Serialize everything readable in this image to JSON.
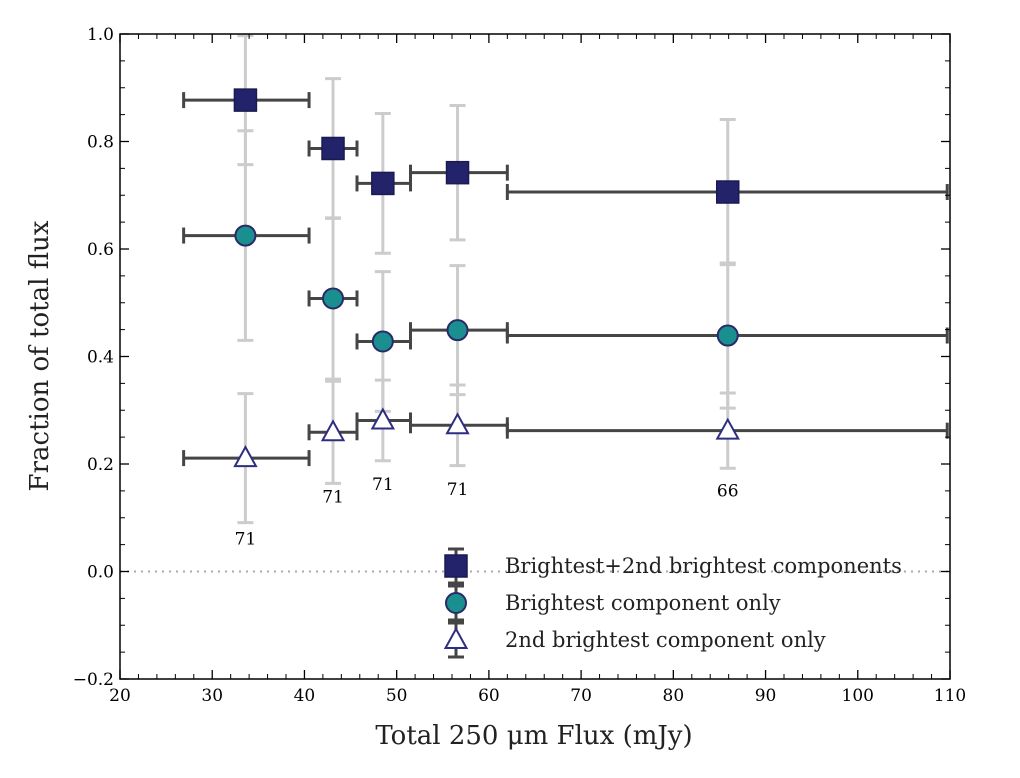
{
  "chart_data": {
    "type": "scatter",
    "xlabel": "Total 250 μm Flux (mJy)",
    "ylabel": "Fraction of total flux",
    "xlim": [
      20,
      110
    ],
    "ylim": [
      -0.2,
      1.0
    ],
    "xticks": [
      "20",
      "30",
      "40",
      "50",
      "60",
      "70",
      "80",
      "90",
      "100",
      "110"
    ],
    "yticks": [
      "−0.2",
      "0.0",
      "0.2",
      "0.4",
      "0.6",
      "0.8",
      "1.0"
    ],
    "xtick_values": [
      20,
      30,
      40,
      50,
      60,
      70,
      80,
      90,
      100,
      110
    ],
    "ytick_values": [
      -0.2,
      0.0,
      0.2,
      0.4,
      0.6,
      0.8,
      1.0
    ],
    "reference_line_y": 0.0,
    "legend_position": "lower-right",
    "bins": [
      {
        "x": 33.6,
        "xlo": 26.9,
        "xhi": 40.5
      },
      {
        "x": 43.1,
        "xlo": 40.5,
        "xhi": 45.7
      },
      {
        "x": 48.5,
        "xlo": 45.7,
        "xhi": 51.5
      },
      {
        "x": 56.6,
        "xlo": 51.5,
        "xhi": 62.0
      },
      {
        "x": 85.9,
        "xlo": 62.0,
        "xhi": 109.7
      }
    ],
    "series": [
      {
        "name": "Brightest+2nd brightest components",
        "marker": "square",
        "color": "#23236b",
        "edge": "#1a1a50",
        "y": [
          0.877,
          0.787,
          0.722,
          0.742,
          0.706
        ],
        "yerr": [
          0.12,
          0.13,
          0.13,
          0.125,
          0.135
        ]
      },
      {
        "name": "Brightest component only",
        "marker": "circle",
        "color": "#1a8f8f",
        "edge": "#2a2a66",
        "y": [
          0.625,
          0.508,
          0.428,
          0.449,
          0.439
        ],
        "yerr": [
          0.195,
          0.15,
          0.13,
          0.12,
          0.135
        ]
      },
      {
        "name": "2nd brightest component only",
        "marker": "triangle",
        "color": "#ffffff",
        "edge": "#2e2e80",
        "y": [
          0.211,
          0.259,
          0.281,
          0.272,
          0.262
        ],
        "yerr": [
          0.12,
          0.095,
          0.075,
          0.075,
          0.07
        ]
      }
    ],
    "counts": [
      {
        "text": "71",
        "x": 33.6,
        "y": 0.05
      },
      {
        "text": "71",
        "x": 43.1,
        "y": 0.128
      },
      {
        "text": "71",
        "x": 48.5,
        "y": 0.152
      },
      {
        "text": "71",
        "x": 56.6,
        "y": 0.142
      },
      {
        "text": "66",
        "x": 85.9,
        "y": 0.14
      }
    ],
    "colors": {
      "errorbar_x": "#454545",
      "errorbar_y": "#cccccc",
      "axis": "#000000",
      "zero_line": "#aaaaaa"
    }
  }
}
